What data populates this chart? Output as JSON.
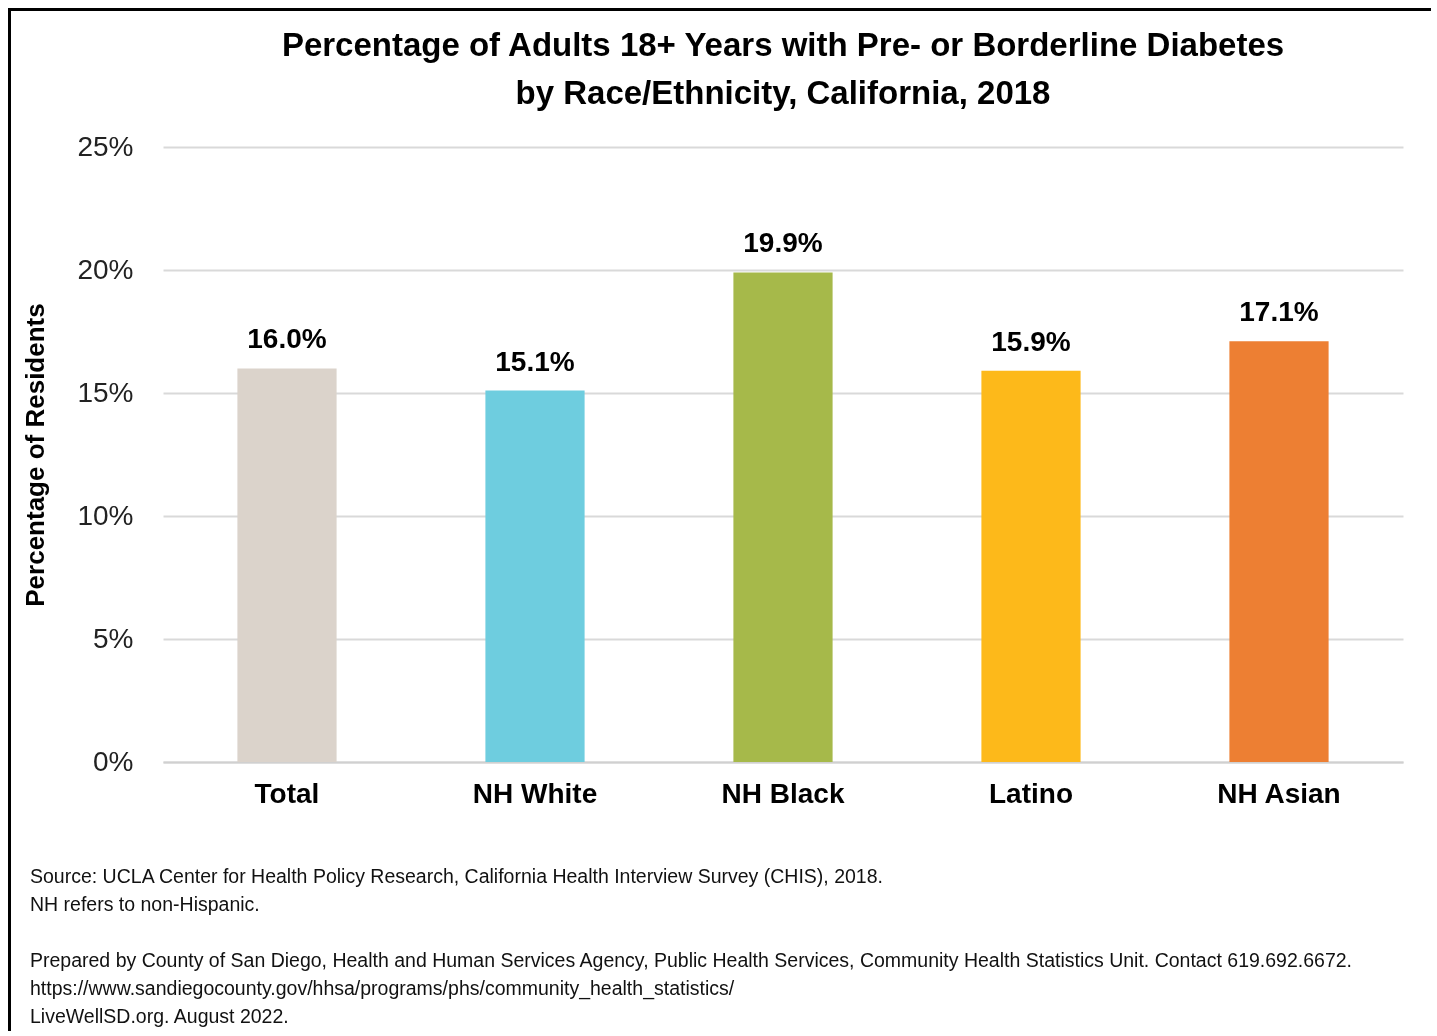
{
  "chart_data": {
    "type": "bar",
    "title": "Percentage of Adults 18+ Years with Pre- or Borderline Diabetes\nby Race/Ethnicity, California, 2018",
    "ylabel": "Percentage of Residents",
    "categories": [
      "Total",
      "NH White",
      "NH Black",
      "Latino",
      "NH Asian"
    ],
    "values": [
      16.0,
      15.1,
      19.9,
      15.9,
      17.1
    ],
    "colors": [
      "#dbd3cb",
      "#6ecddf",
      "#a6b94a",
      "#fdb91a",
      "#ed7f33"
    ],
    "value_labels": [
      "16.0%",
      "15.1%",
      "19.9%",
      "15.9%",
      "17.1%"
    ],
    "ylim": [
      0,
      25
    ],
    "yticks": [
      {
        "value": 0,
        "label": "0%"
      },
      {
        "value": 5,
        "label": "5%"
      },
      {
        "value": 10,
        "label": "10%"
      },
      {
        "value": 15,
        "label": "15%"
      },
      {
        "value": 20,
        "label": "20%"
      },
      {
        "value": 25,
        "label": "25%"
      }
    ],
    "grid": "y",
    "legend": false,
    "annotations": [
      "Source: UCLA Center for Health Policy Research, California Health Interview Survey (CHIS), 2018.",
      "NH refers to non-Hispanic.",
      "Prepared by County of San Diego, Health and Human Services Agency, Public Health Services, Community Health Statistics Unit. Contact 619.692.6672.",
      "https://www.sandiegocounty.gov/hhsa/programs/phs/community_health_statistics/",
      "LiveWellSD.org. August 2022."
    ]
  }
}
